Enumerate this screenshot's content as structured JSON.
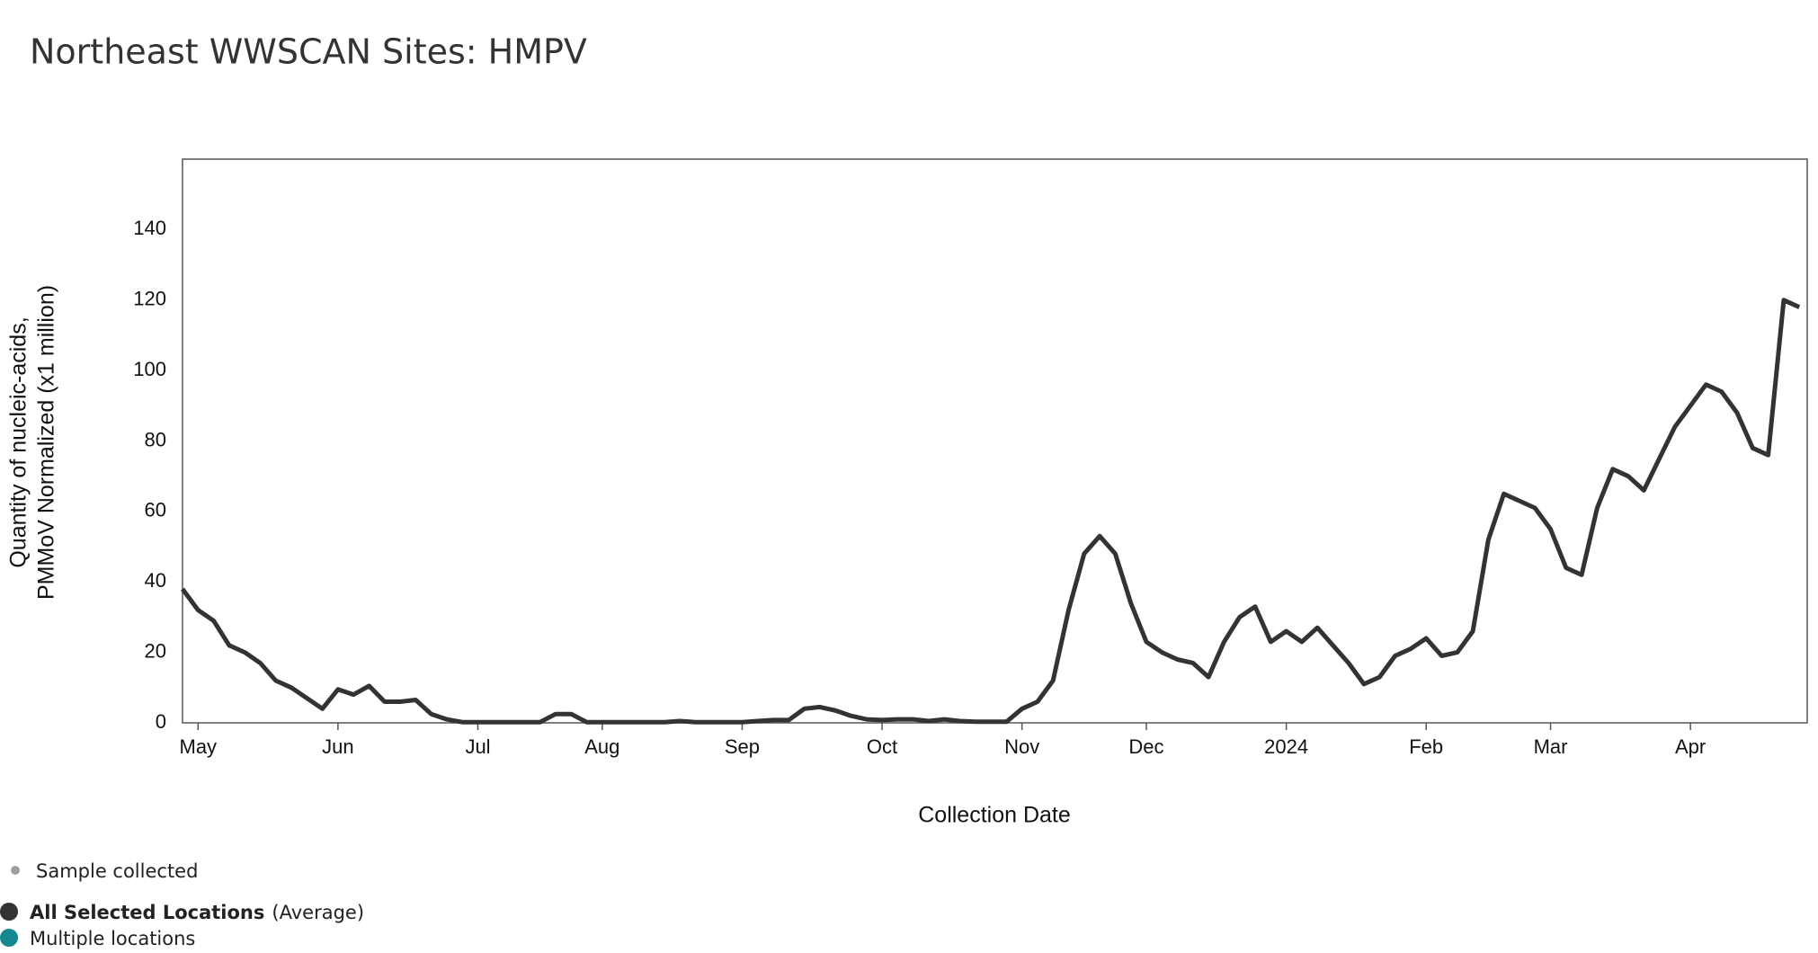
{
  "chart_data": {
    "type": "line",
    "title": "Northeast WWSCAN Sites: HMPV",
    "xlabel": "Collection Date",
    "ylabel": [
      "Quantity of nucleic-acids,",
      "PMMoV Normalized (x1 million)"
    ],
    "categories": [
      null,
      "May",
      null,
      null,
      null,
      null,
      null,
      null,
      null,
      null,
      "Jun",
      null,
      null,
      null,
      null,
      null,
      null,
      null,
      null,
      "Jul",
      null,
      null,
      null,
      null,
      null,
      null,
      null,
      "Aug",
      null,
      null,
      null,
      null,
      null,
      null,
      null,
      null,
      "Sep",
      null,
      null,
      null,
      null,
      null,
      null,
      null,
      null,
      "Oct",
      null,
      null,
      null,
      null,
      null,
      null,
      null,
      null,
      "Nov",
      null,
      null,
      null,
      null,
      null,
      null,
      null,
      "Dec",
      null,
      null,
      null,
      null,
      null,
      null,
      null,
      null,
      "2024",
      null,
      null,
      null,
      null,
      null,
      null,
      null,
      null,
      "Feb",
      null,
      null,
      null,
      null,
      null,
      null,
      null,
      "Mar",
      null,
      null,
      null,
      null,
      null,
      null,
      null,
      null,
      "Apr",
      null,
      null,
      null,
      null,
      null,
      null,
      null
    ],
    "series": [
      {
        "name": "All Selected Locations",
        "note": "(Average)",
        "color": "#333333",
        "values": [
          38,
          32,
          29,
          22,
          20,
          17,
          12,
          10,
          7,
          4,
          9.5,
          8,
          10.5,
          6,
          6,
          6.5,
          2.5,
          1,
          0.2,
          0.2,
          0.2,
          0.2,
          0.2,
          0.2,
          2.5,
          2.5,
          0.2,
          0.2,
          0.2,
          0.2,
          0.2,
          0.2,
          0.5,
          0.2,
          0.2,
          0.2,
          0.2,
          0.5,
          0.8,
          0.8,
          4,
          4.5,
          3.5,
          2,
          1,
          0.8,
          1,
          1,
          0.5,
          1,
          0.5,
          0.3,
          0.3,
          0.3,
          4,
          6,
          12,
          32,
          48,
          53,
          48,
          34,
          23,
          20,
          18,
          17,
          13,
          23,
          30,
          33,
          23,
          26,
          23,
          27,
          22,
          17,
          11,
          13,
          19,
          21,
          24,
          19,
          20,
          26,
          52,
          65,
          63,
          61,
          55,
          44,
          42,
          61,
          72,
          70,
          66,
          75,
          84,
          90,
          96,
          94,
          88,
          78,
          76,
          120,
          118
        ]
      }
    ],
    "legend_items": [
      {
        "label": "Sample collected",
        "color": "#9ca0a8"
      },
      {
        "label": "Multiple locations",
        "color": "#13898f"
      }
    ],
    "ylim": [
      0,
      160
    ],
    "yticks": [
      0,
      20,
      40,
      60,
      80,
      100,
      120,
      140
    ],
    "grid": false
  }
}
